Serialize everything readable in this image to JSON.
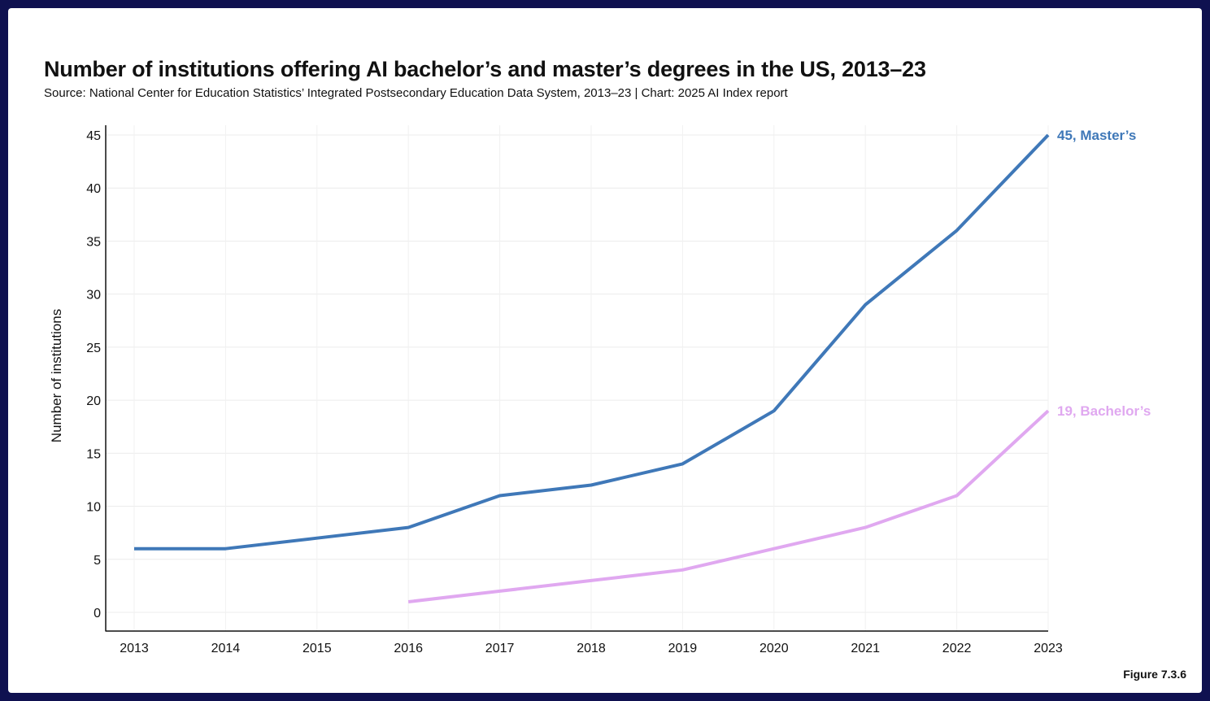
{
  "title": "Number of institutions offering AI bachelor’s and master’s degrees in the US, 2013–23",
  "subtitle": "Source: National Center for Education Statistics’ Integrated Postsecondary Education Data System, 2013–23 | Chart: 2025 AI Index report",
  "figure_label": "Figure 7.3.6",
  "chart_data": {
    "type": "line",
    "title": "Number of institutions offering AI bachelor’s and master’s degrees in the US, 2013–23",
    "ylabel": "Number of institutions",
    "xlabel": "",
    "x": [
      2013,
      2014,
      2015,
      2016,
      2017,
      2018,
      2019,
      2020,
      2021,
      2022,
      2023
    ],
    "ylim": [
      0,
      45
    ],
    "yticks": [
      0,
      5,
      10,
      15,
      20,
      25,
      30,
      35,
      40,
      45
    ],
    "grid": true,
    "series": [
      {
        "name": "Master’s",
        "color": "#3f78b8",
        "values": [
          6,
          6,
          7,
          8,
          11,
          12,
          14,
          19,
          29,
          36,
          45
        ],
        "end_label": "45, Master’s"
      },
      {
        "name": "Bachelor’s",
        "color": "#e0a8f0",
        "values": [
          null,
          null,
          null,
          1,
          2,
          3,
          4,
          6,
          8,
          11,
          19
        ],
        "end_label": "19, Bachelor’s"
      }
    ]
  }
}
